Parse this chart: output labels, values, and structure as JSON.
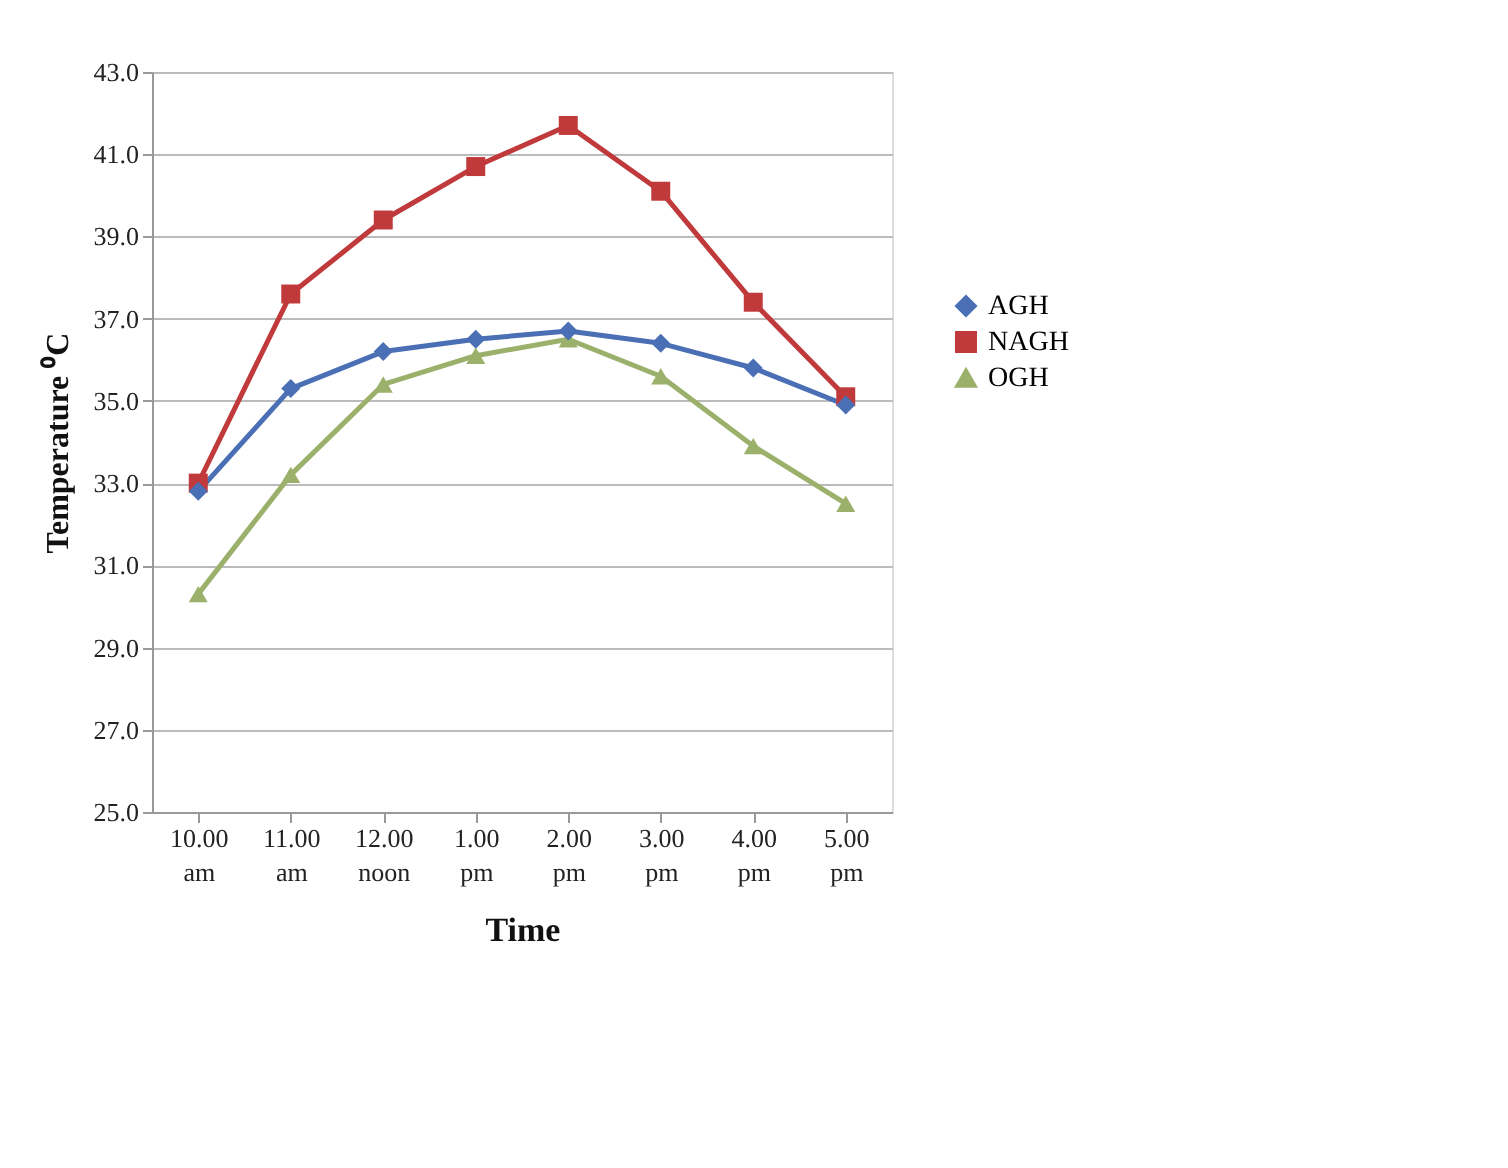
{
  "chart_data": {
    "type": "line",
    "xlabel": "Time",
    "ylabel": "Temperature ⁰C",
    "categories": [
      "10.00 am",
      "11.00 am",
      "12.00 noon",
      "1.00 pm",
      "2.00 pm",
      "3.00 pm",
      "4.00 pm",
      "5.00 pm"
    ],
    "series": [
      {
        "name": "AGH",
        "color": "#4a6fb5",
        "marker": "diamond",
        "values": [
          32.8,
          35.3,
          36.2,
          36.5,
          36.7,
          36.4,
          35.8,
          34.9
        ]
      },
      {
        "name": "NAGH",
        "color": "#c0393b",
        "marker": "square",
        "values": [
          33.0,
          37.6,
          39.4,
          40.7,
          41.7,
          40.1,
          37.4,
          35.1
        ]
      },
      {
        "name": "OGH",
        "color": "#9bb06a",
        "marker": "triangle",
        "values": [
          30.3,
          33.2,
          35.4,
          36.1,
          36.5,
          35.6,
          33.9,
          32.5
        ]
      }
    ],
    "ylim": [
      25,
      43
    ],
    "yticks": [
      {
        "value": 25,
        "label": "25.0"
      },
      {
        "value": 27,
        "label": "27.0"
      },
      {
        "value": 29,
        "label": "29.0"
      },
      {
        "value": 31,
        "label": "31.0"
      },
      {
        "value": 33,
        "label": "33.0"
      },
      {
        "value": 35,
        "label": "35.0"
      },
      {
        "value": 37,
        "label": "37.0"
      },
      {
        "value": 39,
        "label": "39.0"
      },
      {
        "value": 41,
        "label": "41.0"
      },
      {
        "value": 43,
        "label": "43.0"
      }
    ],
    "grid": "y",
    "legend": "right",
    "line_style": "solid"
  }
}
